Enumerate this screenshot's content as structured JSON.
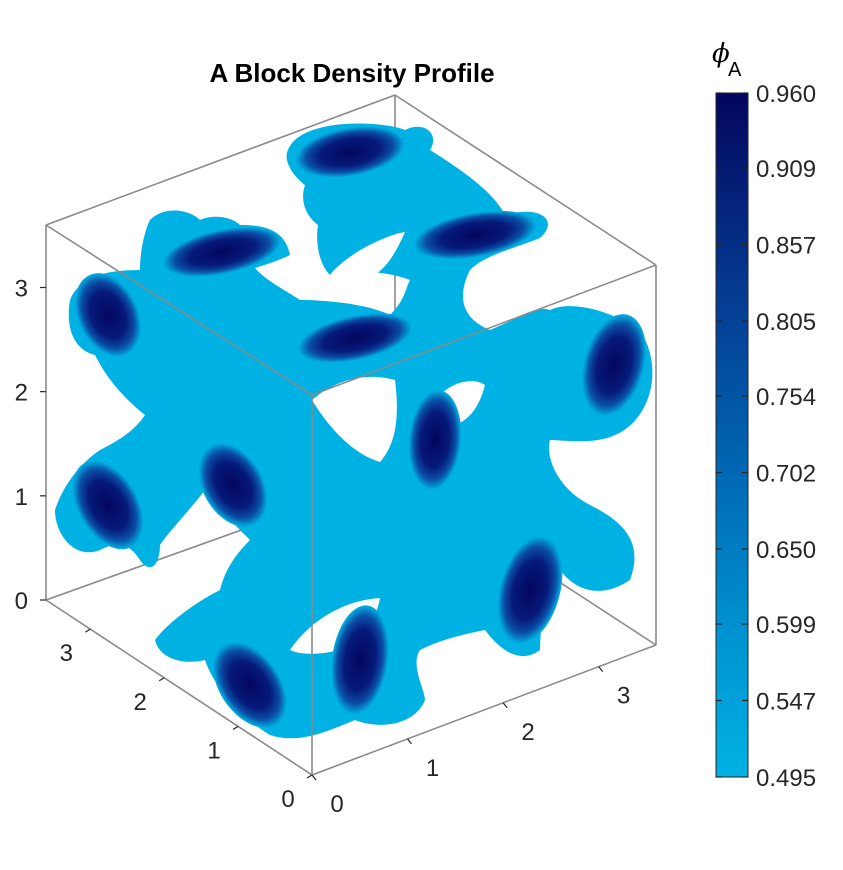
{
  "chart_data": {
    "type": "isosurface",
    "title": "A Block Density Profile",
    "colorbar": {
      "label": "ϕ",
      "label_subscript": "A",
      "ticks": [
        "0.960",
        "0.909",
        "0.857",
        "0.805",
        "0.754",
        "0.702",
        "0.650",
        "0.599",
        "0.547",
        "0.495"
      ],
      "range": [
        0.495,
        0.96
      ],
      "color_low": "#00b1e3",
      "color_high": "#03065f"
    },
    "z_axis": {
      "ticks": [
        "0",
        "1",
        "2",
        "3"
      ],
      "range": [
        0,
        3.6
      ]
    },
    "y_axis": {
      "ticks": [
        "0",
        "1",
        "2",
        "3"
      ],
      "range": [
        0,
        3.6
      ]
    },
    "x_axis": {
      "ticks": [
        "0",
        "1",
        "2",
        "3"
      ],
      "range": [
        0,
        3.6
      ]
    },
    "surface_color": "#00b1e3",
    "core_color": "#03065f",
    "grid": false
  }
}
